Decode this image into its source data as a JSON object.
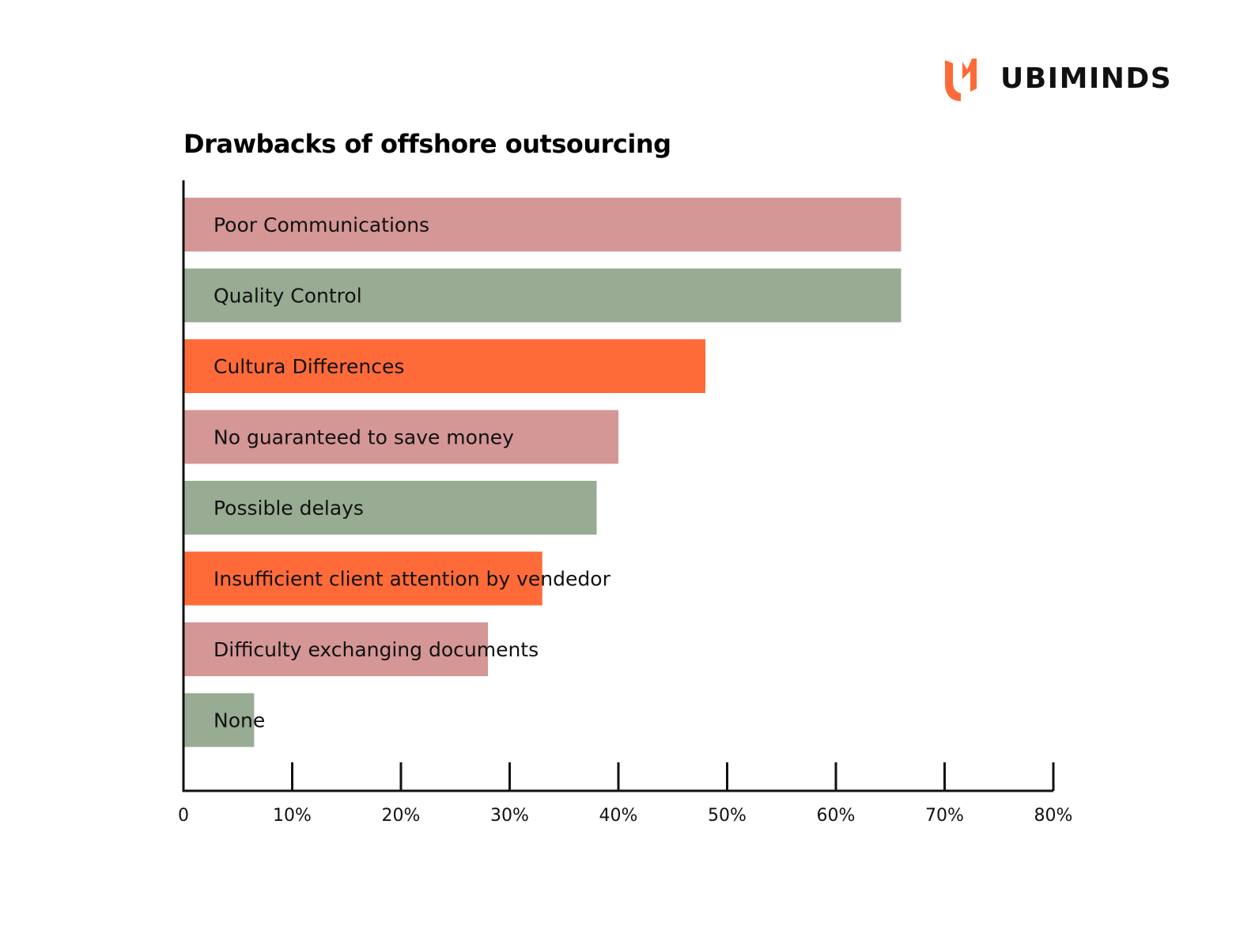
{
  "brand": {
    "name": "UBIMINDS",
    "logo_icon": "ubiminds-logo-icon",
    "accent_color": "#FF6B38"
  },
  "chart_data": {
    "type": "bar",
    "orientation": "horizontal",
    "title": "Drawbacks of offshore outsourcing",
    "categories": [
      "Poor Communications",
      "Quality Control",
      "Cultura Differences",
      "No guaranteed to save money",
      "Possible delays",
      "Insufficient client attention by vendedor",
      "Difficulty exchanging documents",
      "None"
    ],
    "values": [
      66,
      66,
      48,
      40,
      38,
      33,
      28,
      6.5
    ],
    "colors": [
      "#D59696",
      "#97AC92",
      "#FF6B38",
      "#D59696",
      "#97AC92",
      "#FF6B38",
      "#D59696",
      "#97AC92"
    ],
    "xlim": [
      0,
      80
    ],
    "xticks": [
      0,
      10,
      20,
      30,
      40,
      50,
      60,
      70,
      80
    ],
    "xtick_labels": [
      "0",
      "10%",
      "20%",
      "30%",
      "40%",
      "50%",
      "60%",
      "70%",
      "80%"
    ],
    "xlabel": "",
    "ylabel": "",
    "grid": false,
    "legend": "none"
  }
}
